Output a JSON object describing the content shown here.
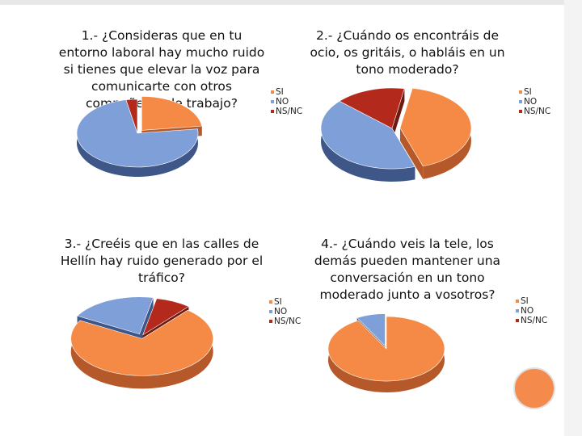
{
  "colors": {
    "si": "#f58a46",
    "no": "#7f9fd8",
    "nsnc": "#b3291c",
    "si_side": "#b5592a",
    "no_side": "#3e5788",
    "nsnc_side": "#6c1a12"
  },
  "chart_data": [
    {
      "type": "pie",
      "title": "1.- ¿Consideras que en tu entorno laboral hay mucho ruido si tienes que elevar la voz para comunicarte con otros compañeros de trabajo?",
      "title_lines": [
        "1.- ¿Consideras que en tu",
        "entorno laboral hay mucho ruido",
        "si tienes que elevar la voz para",
        "comunicarte con otros",
        "compañeros de trabajo?"
      ],
      "categories": [
        "SI",
        "NO",
        "NS/NC"
      ],
      "values": [
        23,
        74,
        3
      ],
      "legend": [
        "SI",
        "NO",
        "NS/NC"
      ],
      "legend_position": "right"
    },
    {
      "type": "pie",
      "title": "2.- ¿Cuándo os encontráis de ocio, os gritáis, o habláis en un tono moderado?",
      "title_lines": [
        "2.- ¿Cuándo os encontráis de",
        "ocio, os gritáis, o habláis en un",
        "tono moderado?"
      ],
      "categories": [
        "SI",
        "NO",
        "NS/NC"
      ],
      "values": [
        42,
        42,
        16
      ],
      "legend": [
        "SI",
        "NO",
        "NS/NC"
      ],
      "legend_position": "right"
    },
    {
      "type": "pie",
      "title": "3.- ¿Creéis que en las calles de Hellín hay ruido generado por el tráfico?",
      "title_lines": [
        "3.- ¿Creéis que en las calles de",
        "Hellín hay ruido generado por el",
        "tráfico?"
      ],
      "categories": [
        "SI",
        "NO",
        "NS/NC"
      ],
      "values": [
        72,
        20,
        8
      ],
      "legend": [
        "SI",
        "NO",
        "NS/NC"
      ],
      "legend_position": "right"
    },
    {
      "type": "pie",
      "title": "4.- ¿Cuándo veis la tele, los demás pueden mantener una conversación en un tono moderado junto a vosotros?",
      "title_lines": [
        "4.- ¿Cuándo veis la tele, los",
        "demás pueden mantener una",
        "conversación en un tono",
        "moderado junto a vosotros?"
      ],
      "categories": [
        "SI",
        "NO",
        "NS/NC"
      ],
      "values": [
        92,
        8,
        0
      ],
      "legend": [
        "SI",
        "NO",
        "NS/NC"
      ],
      "legend_position": "right"
    }
  ]
}
